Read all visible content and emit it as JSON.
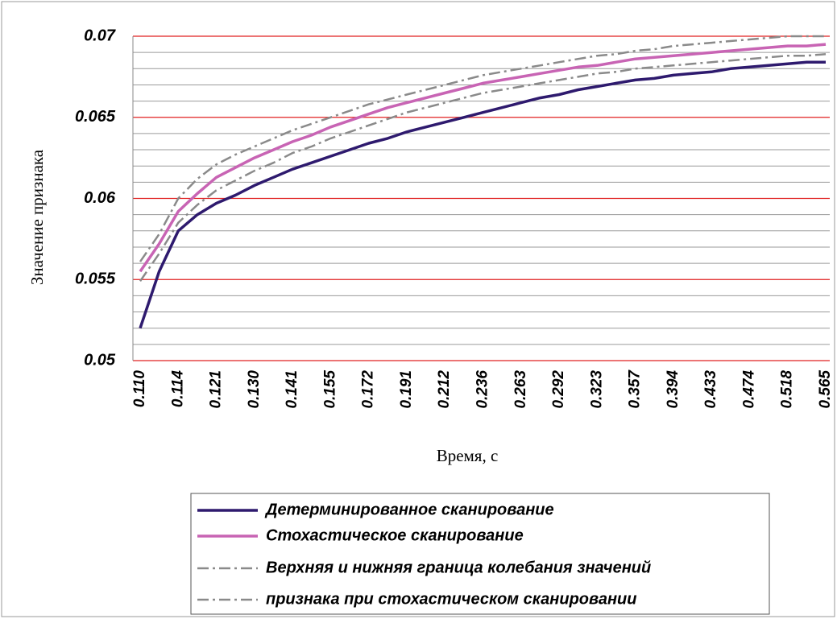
{
  "chart_data": {
    "type": "line",
    "ylabel": "Значение признака",
    "xlabel": "Время, с",
    "categories": [
      "0.110",
      null,
      "0.114",
      null,
      "0.121",
      null,
      "0.130",
      null,
      "0.141",
      null,
      "0.155",
      null,
      "0.172",
      null,
      "0.191",
      null,
      "0.212",
      null,
      "0.236",
      null,
      "0.263",
      null,
      "0.292",
      null,
      "0.323",
      null,
      "0.357",
      null,
      "0.394",
      null,
      "0.433",
      null,
      "0.474",
      null,
      "0.518",
      null,
      "0.565"
    ],
    "series": [
      {
        "name": "Детерминированное сканирование",
        "color": "#2e1a6e",
        "style": "solid",
        "values": [
          0.052,
          0.0555,
          0.058,
          0.059,
          0.0597,
          0.0602,
          0.0608,
          0.0613,
          0.0618,
          0.0622,
          0.0626,
          0.063,
          0.0634,
          0.0637,
          0.0641,
          0.0644,
          0.0647,
          0.065,
          0.0653,
          0.0656,
          0.0659,
          0.0662,
          0.0664,
          0.0667,
          0.0669,
          0.0671,
          0.0673,
          0.0674,
          0.0676,
          0.0677,
          0.0678,
          0.068,
          0.0681,
          0.0682,
          0.0683,
          0.0684,
          0.0684
        ]
      },
      {
        "name": "Стохастическое сканирование",
        "color": "#c864b4",
        "style": "solid",
        "values": [
          0.0555,
          0.0572,
          0.0592,
          0.0603,
          0.0613,
          0.0619,
          0.0625,
          0.063,
          0.0635,
          0.0639,
          0.0644,
          0.0648,
          0.0652,
          0.0656,
          0.0659,
          0.0662,
          0.0665,
          0.0668,
          0.0671,
          0.0673,
          0.0675,
          0.0677,
          0.0679,
          0.0681,
          0.0682,
          0.0684,
          0.0686,
          0.0687,
          0.0688,
          0.0689,
          0.069,
          0.0691,
          0.0692,
          0.0693,
          0.0694,
          0.0694,
          0.0695
        ]
      },
      {
        "name": "Верхняя и нижняя граница колебания значений",
        "color": "#8a8a8a",
        "style": "dash-dot",
        "values": [
          0.0561,
          0.0578,
          0.06,
          0.0612,
          0.0621,
          0.0627,
          0.0632,
          0.0637,
          0.0642,
          0.0646,
          0.065,
          0.0654,
          0.0658,
          0.0661,
          0.0664,
          0.0667,
          0.067,
          0.0673,
          0.0676,
          0.0678,
          0.068,
          0.0682,
          0.0684,
          0.0686,
          0.0688,
          0.0689,
          0.0691,
          0.0692,
          0.0694,
          0.0695,
          0.0696,
          0.0697,
          0.0698,
          0.0699,
          0.07,
          0.07,
          0.07
        ]
      },
      {
        "name": "признака при стохастическом сканировании",
        "color": "#8a8a8a",
        "style": "dash-dot",
        "values": [
          0.0549,
          0.0566,
          0.0585,
          0.0596,
          0.0605,
          0.0611,
          0.0617,
          0.0622,
          0.0628,
          0.0632,
          0.0637,
          0.0641,
          0.0645,
          0.0649,
          0.0653,
          0.0656,
          0.0659,
          0.0662,
          0.0665,
          0.0667,
          0.0669,
          0.0671,
          0.0673,
          0.0675,
          0.0677,
          0.0678,
          0.068,
          0.0681,
          0.0682,
          0.0683,
          0.0684,
          0.0685,
          0.0686,
          0.0687,
          0.0688,
          0.0688,
          0.0689
        ]
      }
    ],
    "ylim": [
      0.05,
      0.07
    ],
    "yticks": [
      0.05,
      0.055,
      0.06,
      0.065,
      0.07
    ],
    "minor_yticks": [
      0.051,
      0.052,
      0.053,
      0.054,
      0.056,
      0.057,
      0.058,
      0.059,
      0.061,
      0.062,
      0.063,
      0.064,
      0.066,
      0.067,
      0.068,
      0.069
    ],
    "grid": true,
    "grid_color": "#e02020",
    "minor_grid_color": "#9a9a9a",
    "legend": "bottom"
  }
}
